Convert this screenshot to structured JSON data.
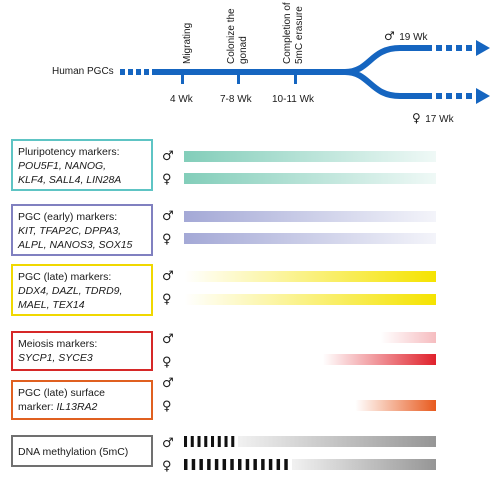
{
  "timeline": {
    "start_label": "Human PGCs",
    "events": [
      {
        "label_lines": [
          "Migrating"
        ],
        "week": "4 Wk"
      },
      {
        "label_lines": [
          "Colonize the",
          "gonad"
        ],
        "week": "7-8 Wk"
      },
      {
        "label_lines": [
          "Completion of",
          "5mC erasure"
        ],
        "week": "10-11 Wk"
      }
    ],
    "male_branch": {
      "symbol": "♂",
      "week": "19 Wk"
    },
    "female_branch": {
      "symbol": "♀",
      "week": "17 Wk"
    },
    "color": "#1565c0"
  },
  "symbols": {
    "male": "♂",
    "female": "♀"
  },
  "marker_groups": [
    {
      "title": "Pluripotency markers:",
      "genes_lines": [
        "POU5F1, NANOG,",
        "KLF4, SALL4, LIN28A"
      ],
      "border_color": "#5ec4c4",
      "bar_color": "#7ccbb6",
      "male": {
        "pattern": "fade-right",
        "from": 0.0,
        "to": 1.0
      },
      "female": {
        "pattern": "fade-right",
        "from": 0.0,
        "to": 1.0
      }
    },
    {
      "title": "PGC (early) markers:",
      "genes_lines": [
        "KIT, TFAP2C, DPPA3,",
        "ALPL, NANOS3, SOX15"
      ],
      "border_color": "#8080c0",
      "bar_color": "#9fa4d4",
      "male": {
        "pattern": "fade-right",
        "from": 0.0,
        "to": 1.0
      },
      "female": {
        "pattern": "fade-right",
        "from": 0.0,
        "to": 1.0
      }
    },
    {
      "title": "PGC (late) markers:",
      "genes_lines": [
        "DDX4, DAZL, TDRD9,",
        "MAEL, TEX14"
      ],
      "border_color": "#f0d800",
      "bar_color": "#f5e300",
      "male": {
        "pattern": "fade-in",
        "from": 0.0,
        "to": 1.0
      },
      "female": {
        "pattern": "fade-in",
        "from": 0.0,
        "to": 1.0
      }
    },
    {
      "title": "Meiosis markers:",
      "genes_lines": [
        "SYCP1, SYCE3"
      ],
      "border_color": "#d62828",
      "bar_color": "#e0222c",
      "male": {
        "pattern": "fade-in",
        "from": 0.78,
        "to": 1.0,
        "strength": 0.3
      },
      "female": {
        "pattern": "fade-in",
        "from": 0.55,
        "to": 1.0
      }
    },
    {
      "title": "PGC (late) surface",
      "genes_prefix": "marker: ",
      "genes_lines": [
        "IL13RA2"
      ],
      "border_color": "#e06020",
      "bar_color": "#e85a1e",
      "male": {
        "pattern": "none"
      },
      "female": {
        "pattern": "fade-in",
        "from": 0.68,
        "to": 1.0
      }
    },
    {
      "title": "DNA methylation (5mC)",
      "genes_lines": [],
      "border_color": "#707070",
      "bar_color": "#8a8a8a",
      "male": {
        "pattern": "dashed-then-fade-in",
        "dashes": 8
      },
      "female": {
        "pattern": "dashed-then-fade-in",
        "dashes": 14
      }
    }
  ]
}
